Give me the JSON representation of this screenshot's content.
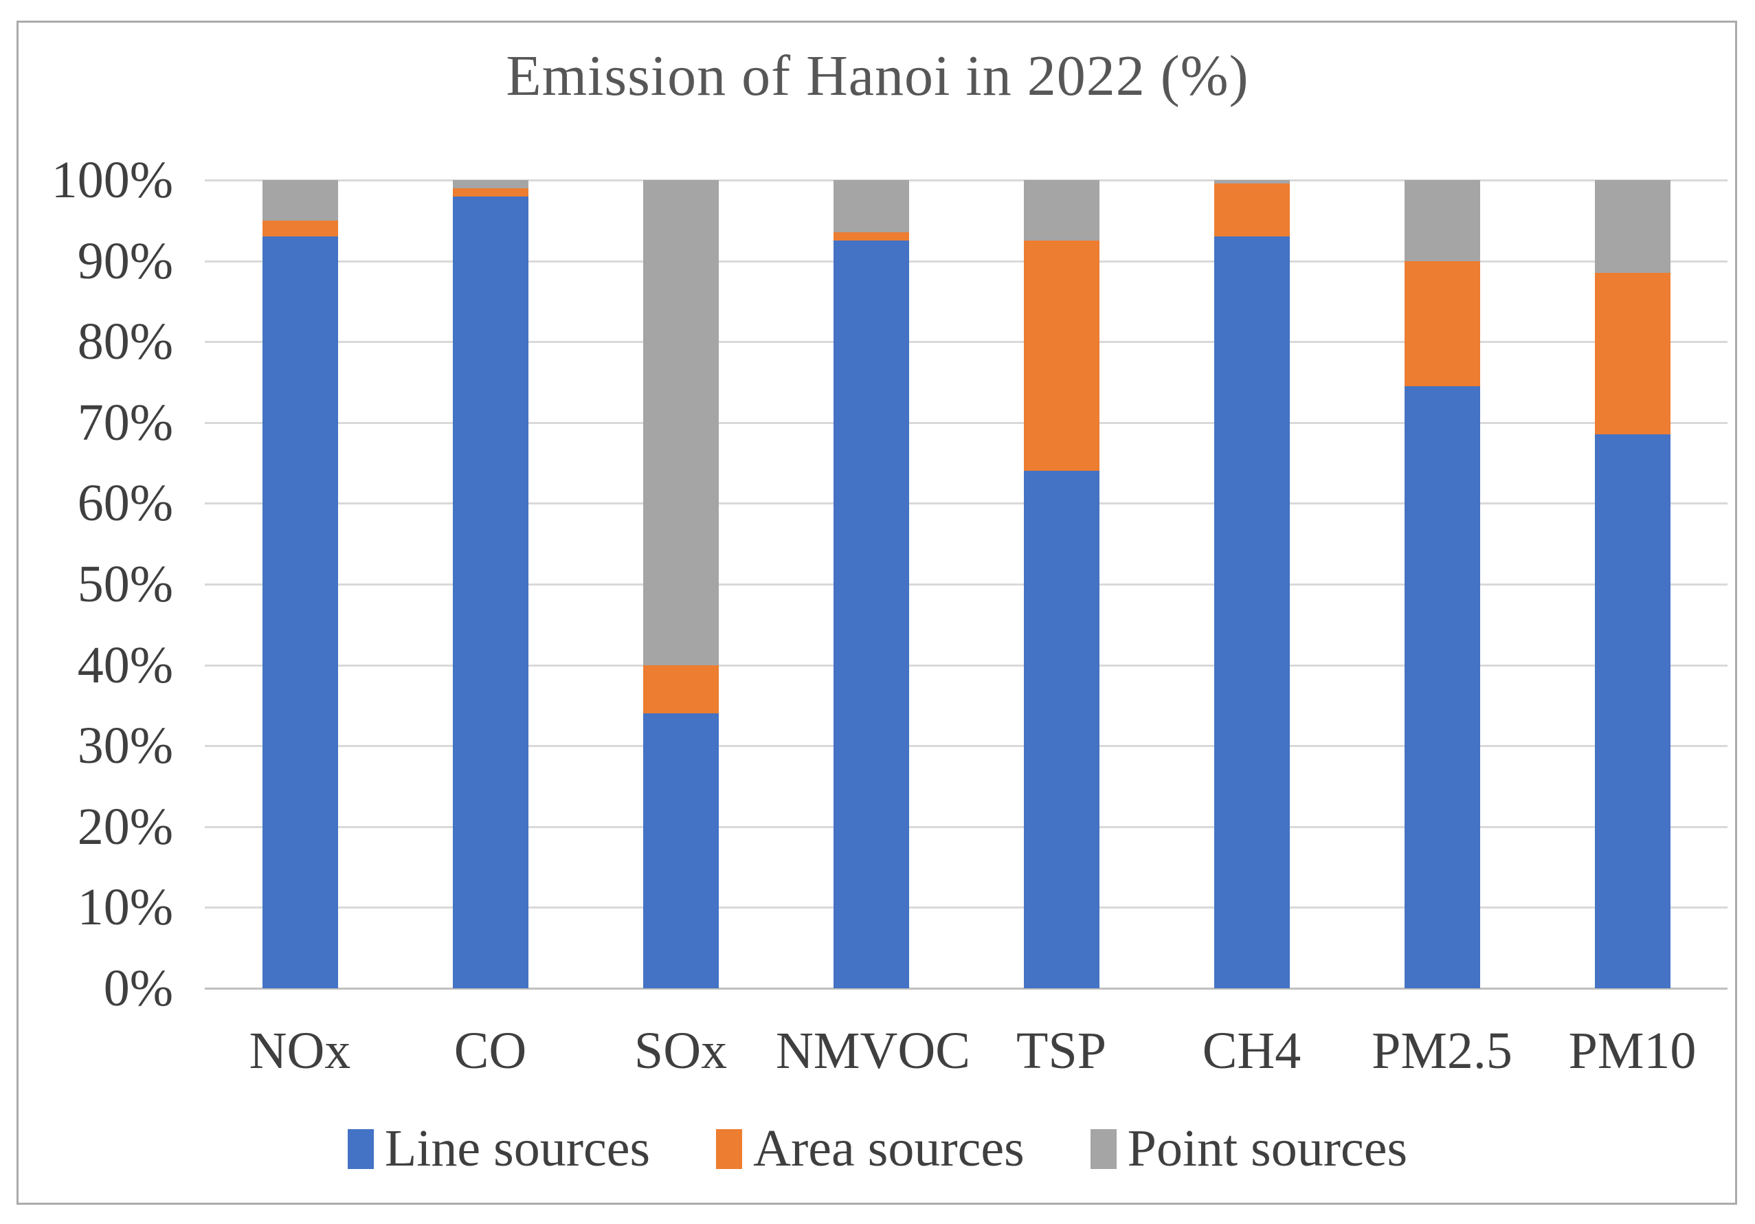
{
  "chart_data": {
    "type": "bar",
    "subtype": "stacked-100-percent",
    "title": "Emission of Hanoi in 2022 (%)",
    "categories": [
      "NOx",
      "CO",
      "SOx",
      "NMVOC",
      "TSP",
      "CH4",
      "PM2.5",
      "PM10"
    ],
    "series": [
      {
        "name": "Line sources",
        "color": "#4472C4",
        "values": [
          93,
          98,
          34,
          92.5,
          64,
          93,
          74.5,
          68.5
        ]
      },
      {
        "name": "Area sources",
        "color": "#ED7D31",
        "values": [
          2,
          1,
          6,
          1,
          28.5,
          6.6,
          15.5,
          20
        ]
      },
      {
        "name": "Point sources",
        "color": "#A5A5A5",
        "values": [
          5,
          1,
          60,
          6.5,
          7.5,
          0.4,
          10,
          11.5
        ]
      }
    ],
    "y_tick_labels": [
      "0%",
      "10%",
      "20%",
      "30%",
      "40%",
      "50%",
      "60%",
      "70%",
      "80%",
      "90%",
      "100%"
    ],
    "ylim": [
      0,
      100
    ],
    "grid": true,
    "legend_position": "bottom",
    "style_colors": {
      "gridline": "#D9D9D9",
      "axis_line": "#BFBFBF",
      "text": "#3F3F3F",
      "frame_border": "#ABABAB"
    }
  }
}
